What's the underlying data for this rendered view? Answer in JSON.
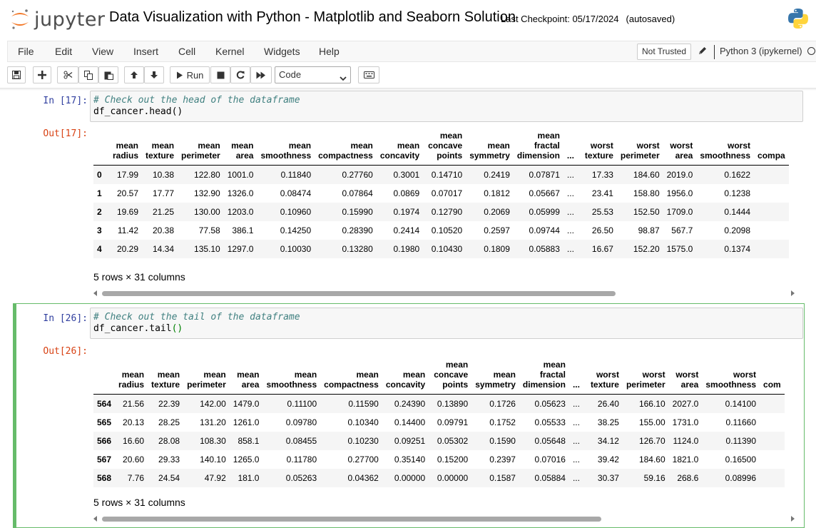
{
  "header": {
    "logo_text": "jupyter",
    "notebook_title": "Data Visualization with Python - Matplotlib and Seaborn Solution",
    "checkpoint": "Last Checkpoint: 05/17/2024",
    "autosave": "(autosaved)"
  },
  "menu": {
    "items": [
      "File",
      "Edit",
      "View",
      "Insert",
      "Cell",
      "Kernel",
      "Widgets",
      "Help"
    ],
    "trust": "Not Trusted",
    "kernel": "Python 3 (ipykernel)"
  },
  "toolbar": {
    "run_label": "Run",
    "cell_type": "Code"
  },
  "cell1": {
    "in_prompt": "In [17]:",
    "code_comment": "# Check out the head of the dataframe",
    "code_line2": "df_cancer.head()",
    "out_prompt": "Out[17]:",
    "columns": [
      [
        "mean",
        "radius"
      ],
      [
        "mean",
        "texture"
      ],
      [
        "mean",
        "perimeter"
      ],
      [
        "mean",
        "area"
      ],
      [
        "mean",
        "smoothness"
      ],
      [
        "mean",
        "compactness"
      ],
      [
        "mean",
        "concavity"
      ],
      [
        "mean",
        "concave",
        "points"
      ],
      [
        "mean",
        "symmetry"
      ],
      [
        "mean",
        "fractal",
        "dimension"
      ],
      [
        "..."
      ],
      [
        "worst",
        "texture"
      ],
      [
        "worst",
        "perimeter"
      ],
      [
        "worst",
        "area"
      ],
      [
        "worst",
        "smoothness"
      ],
      [
        "compa"
      ]
    ],
    "rows": [
      [
        "0",
        "17.99",
        "10.38",
        "122.80",
        "1001.0",
        "0.11840",
        "0.27760",
        "0.3001",
        "0.14710",
        "0.2419",
        "0.07871",
        "...",
        "17.33",
        "184.60",
        "2019.0",
        "0.1622",
        ""
      ],
      [
        "1",
        "20.57",
        "17.77",
        "132.90",
        "1326.0",
        "0.08474",
        "0.07864",
        "0.0869",
        "0.07017",
        "0.1812",
        "0.05667",
        "...",
        "23.41",
        "158.80",
        "1956.0",
        "0.1238",
        ""
      ],
      [
        "2",
        "19.69",
        "21.25",
        "130.00",
        "1203.0",
        "0.10960",
        "0.15990",
        "0.1974",
        "0.12790",
        "0.2069",
        "0.05999",
        "...",
        "25.53",
        "152.50",
        "1709.0",
        "0.1444",
        ""
      ],
      [
        "3",
        "11.42",
        "20.38",
        "77.58",
        "386.1",
        "0.14250",
        "0.28390",
        "0.2414",
        "0.10520",
        "0.2597",
        "0.09744",
        "...",
        "26.50",
        "98.87",
        "567.7",
        "0.2098",
        ""
      ],
      [
        "4",
        "20.29",
        "14.34",
        "135.10",
        "1297.0",
        "0.10030",
        "0.13280",
        "0.1980",
        "0.10430",
        "0.1809",
        "0.05883",
        "...",
        "16.67",
        "152.20",
        "1575.0",
        "0.1374",
        ""
      ]
    ],
    "shape": "5 rows × 31 columns"
  },
  "cell2": {
    "in_prompt": "In [26]:",
    "code_comment": "# Check out the tail of the dataframe",
    "code_prefix": "df_cancer.tail",
    "code_parens": "()",
    "out_prompt": "Out[26]:",
    "columns": [
      [
        "mean",
        "radius"
      ],
      [
        "mean",
        "texture"
      ],
      [
        "mean",
        "perimeter"
      ],
      [
        "mean",
        "area"
      ],
      [
        "mean",
        "smoothness"
      ],
      [
        "mean",
        "compactness"
      ],
      [
        "mean",
        "concavity"
      ],
      [
        "mean",
        "concave",
        "points"
      ],
      [
        "mean",
        "symmetry"
      ],
      [
        "mean",
        "fractal",
        "dimension"
      ],
      [
        "..."
      ],
      [
        "worst",
        "texture"
      ],
      [
        "worst",
        "perimeter"
      ],
      [
        "worst",
        "area"
      ],
      [
        "worst",
        "smoothness"
      ],
      [
        "com"
      ]
    ],
    "rows": [
      [
        "564",
        "21.56",
        "22.39",
        "142.00",
        "1479.0",
        "0.11100",
        "0.11590",
        "0.24390",
        "0.13890",
        "0.1726",
        "0.05623",
        "...",
        "26.40",
        "166.10",
        "2027.0",
        "0.14100",
        ""
      ],
      [
        "565",
        "20.13",
        "28.25",
        "131.20",
        "1261.0",
        "0.09780",
        "0.10340",
        "0.14400",
        "0.09791",
        "0.1752",
        "0.05533",
        "...",
        "38.25",
        "155.00",
        "1731.0",
        "0.11660",
        ""
      ],
      [
        "566",
        "16.60",
        "28.08",
        "108.30",
        "858.1",
        "0.08455",
        "0.10230",
        "0.09251",
        "0.05302",
        "0.1590",
        "0.05648",
        "...",
        "34.12",
        "126.70",
        "1124.0",
        "0.11390",
        ""
      ],
      [
        "567",
        "20.60",
        "29.33",
        "140.10",
        "1265.0",
        "0.11780",
        "0.27700",
        "0.35140",
        "0.15200",
        "0.2397",
        "0.07016",
        "...",
        "39.42",
        "184.60",
        "1821.0",
        "0.16500",
        ""
      ],
      [
        "568",
        "7.76",
        "24.54",
        "47.92",
        "181.0",
        "0.05263",
        "0.04362",
        "0.00000",
        "0.00000",
        "0.1587",
        "0.05884",
        "...",
        "30.37",
        "59.16",
        "268.6",
        "0.08996",
        ""
      ]
    ],
    "shape": "5 rows × 31 columns"
  },
  "colors": {
    "in_prompt": "#303f9f",
    "out_prompt": "#d84315",
    "selected_border": "#66bb6a",
    "comment": "#408080"
  }
}
